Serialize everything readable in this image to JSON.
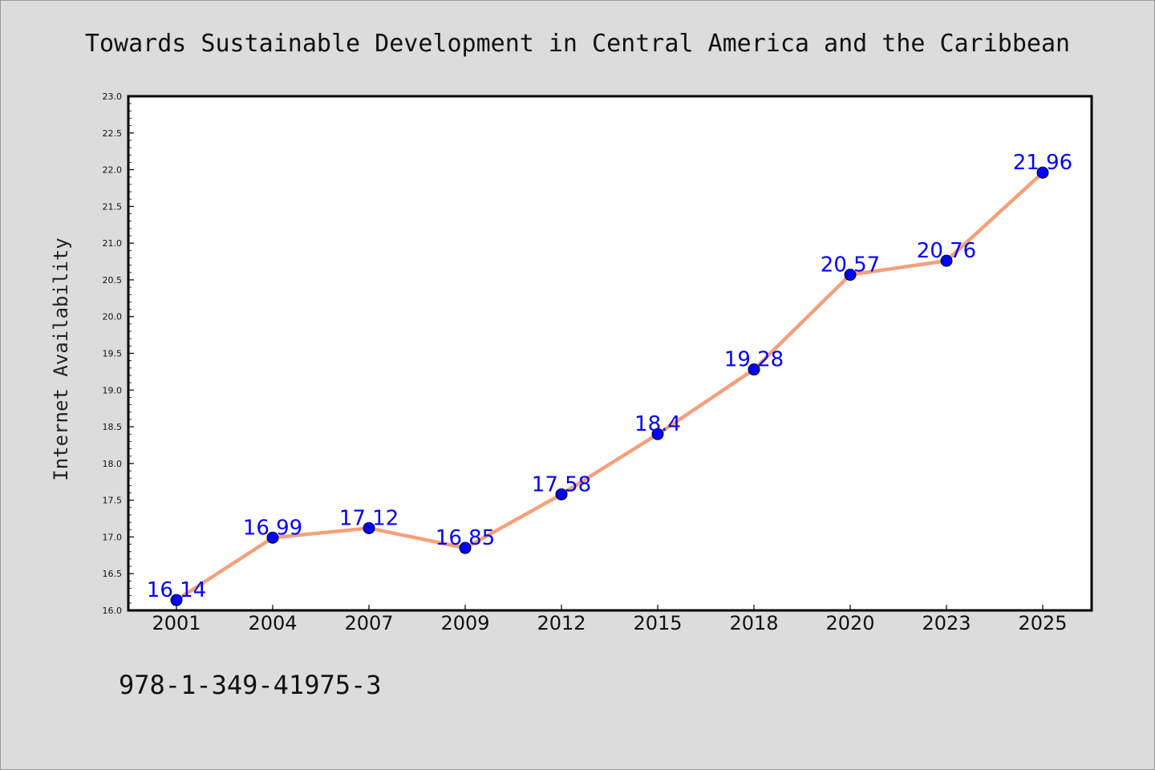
{
  "chart_data": {
    "type": "line",
    "title": "Towards Sustainable Development in Central America and the Caribbean",
    "xlabel": "",
    "ylabel": "Internet Availability",
    "categories": [
      "2001",
      "2004",
      "2007",
      "2009",
      "2012",
      "2015",
      "2018",
      "2020",
      "2023",
      "2025"
    ],
    "series": [
      {
        "values": [
          16.14,
          16.99,
          17.12,
          16.85,
          17.58,
          18.4,
          19.28,
          20.57,
          20.76,
          21.96
        ],
        "labels": [
          "16.14",
          "16.99",
          "17.12",
          "16.85",
          "17.58",
          "18.4",
          "19.28",
          "20.57",
          "20.76",
          "21.96"
        ],
        "line_color": "#f4a07c",
        "marker_color": "#0000ff"
      }
    ],
    "ylim": [
      16.0,
      23.0
    ],
    "yticks": [
      "16.0",
      "16.5",
      "17.0",
      "17.5",
      "18.0",
      "18.5",
      "19.0",
      "19.5",
      "20.0",
      "20.5",
      "21.0",
      "21.5",
      "22.0",
      "22.5",
      "23.0"
    ],
    "grid": false,
    "legend": "none",
    "annotation": "978-1-349-41975-3"
  },
  "colors": {
    "background": "#dcdcdc",
    "plot_area": "#ffffff",
    "label_color": "#0000ff"
  }
}
